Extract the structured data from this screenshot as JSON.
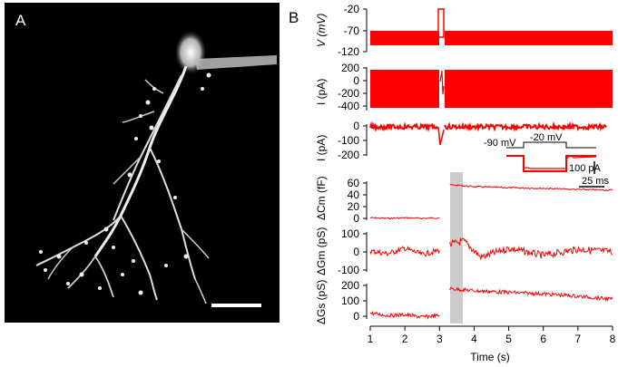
{
  "figure": {
    "panel_a_label": "A",
    "panel_b_label": "B"
  },
  "colors": {
    "trace": "#ff0000",
    "background_a": "#000000",
    "shade": "#cccccc"
  },
  "panel_a": {
    "content": "micrograph",
    "scale_bar": true
  },
  "chart_data": [
    {
      "type": "line",
      "ylabel": "V (mV)",
      "yticks": [
        "-20",
        "-70",
        "-120"
      ],
      "ylim": [
        -120,
        -20
      ],
      "description_values": {
        "holding": -70,
        "step_peak": -20
      }
    },
    {
      "type": "line",
      "ylabel": "I (pA)",
      "yticks": [
        "200",
        "0",
        "-200",
        "-400"
      ],
      "ylim": [
        -400,
        200
      ]
    },
    {
      "type": "line",
      "ylabel": "I (pA)",
      "yticks": [
        "0",
        "-100",
        "-200"
      ],
      "ylim": [
        -200,
        0
      ],
      "inset": {
        "step_labels": [
          "-90 mV",
          "-20 mV"
        ],
        "scale_current": "100 pA",
        "scale_time": "25 ms"
      }
    },
    {
      "type": "line",
      "ylabel": "ΔCm (fF)",
      "yticks": [
        "60",
        "40",
        "20",
        "0"
      ],
      "ylim": [
        0,
        60
      ],
      "series": [
        {
          "x": [
            1.0,
            1.5,
            2.0,
            2.5,
            3.0
          ],
          "y": [
            1,
            0,
            1,
            0,
            1
          ]
        },
        {
          "x": [
            3.3,
            4.0,
            5.0,
            6.0,
            7.0,
            8.0
          ],
          "y": [
            57,
            54,
            52,
            51,
            49,
            48
          ]
        }
      ]
    },
    {
      "type": "line",
      "ylabel": "ΔGm (pS)",
      "yticks": [
        "100",
        "0",
        "-100"
      ],
      "ylim": [
        -100,
        100
      ],
      "series": [
        {
          "x": [
            1.0,
            1.5,
            2.0,
            2.5,
            3.0
          ],
          "y": [
            5,
            -10,
            20,
            -15,
            10
          ]
        },
        {
          "x": [
            3.3,
            3.7,
            4.2,
            5.0,
            6.0,
            7.0,
            8.0
          ],
          "y": [
            40,
            60,
            -30,
            20,
            -20,
            15,
            0
          ]
        }
      ]
    },
    {
      "type": "line",
      "ylabel": "ΔGs (pS)",
      "yticks": [
        "200",
        "100",
        "0"
      ],
      "ylim": [
        0,
        200
      ],
      "xlabel": "Time (s)",
      "xticks": [
        "1",
        "2",
        "3",
        "4",
        "5",
        "6",
        "7",
        "8"
      ],
      "xlim": [
        1,
        8
      ],
      "series": [
        {
          "x": [
            1.0,
            1.5,
            2.0,
            2.5,
            3.0
          ],
          "y": [
            20,
            5,
            10,
            -5,
            5
          ]
        },
        {
          "x": [
            3.3,
            4.0,
            5.0,
            6.0,
            7.0,
            8.0
          ],
          "y": [
            180,
            165,
            155,
            145,
            130,
            110
          ]
        }
      ]
    }
  ]
}
